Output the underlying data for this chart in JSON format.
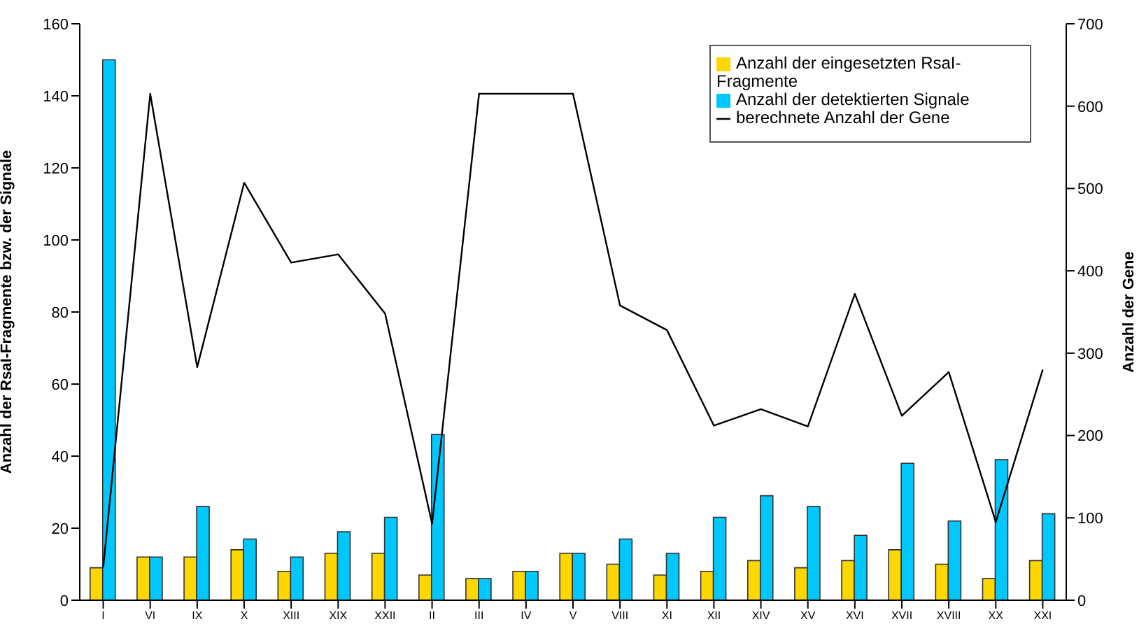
{
  "chart_data": {
    "type": "bar",
    "categories": [
      "I",
      "VI",
      "IX",
      "X",
      "XIII",
      "XIX",
      "XXII",
      "II",
      "III",
      "IV",
      "V",
      "VIII",
      "XI",
      "XII",
      "XIV",
      "XV",
      "XVI",
      "XVII",
      "XVIII",
      "XX",
      "XXI"
    ],
    "series": [
      {
        "name": "Anzahl der eingesetzten RsaI-Fragmente",
        "color": "#ffd700",
        "values": [
          9,
          12,
          12,
          14,
          8,
          13,
          13,
          7,
          6,
          8,
          13,
          10,
          7,
          8,
          11,
          9,
          11,
          14,
          10,
          6,
          11
        ]
      },
      {
        "name": "Anzahl der detektierten Signale",
        "color": "#00c8ff",
        "values": [
          150,
          12,
          26,
          17,
          12,
          19,
          23,
          46,
          6,
          8,
          13,
          17,
          13,
          23,
          29,
          26,
          18,
          38,
          22,
          39,
          24
        ]
      },
      {
        "name": "berechnete Anzahl der Gene",
        "type": "line",
        "axis": "y2",
        "color": "#000000",
        "values": [
          40,
          615,
          283,
          507,
          410,
          420,
          348,
          93,
          615,
          615,
          615,
          358,
          328,
          212,
          232,
          211,
          372,
          224,
          277,
          95,
          280
        ]
      }
    ],
    "ylabel": "Anzahl der RsaI-Fragmente bzw. der Signale",
    "y2label": "Anzahl der Gene",
    "ylim": [
      0,
      160
    ],
    "yticks": [
      0,
      20,
      40,
      60,
      80,
      100,
      120,
      140,
      160
    ],
    "y2lim": [
      0,
      700
    ],
    "y2ticks": [
      0,
      100,
      200,
      300,
      400,
      500,
      600,
      700
    ],
    "grid": false,
    "legend": "top right",
    "marker": "none"
  }
}
